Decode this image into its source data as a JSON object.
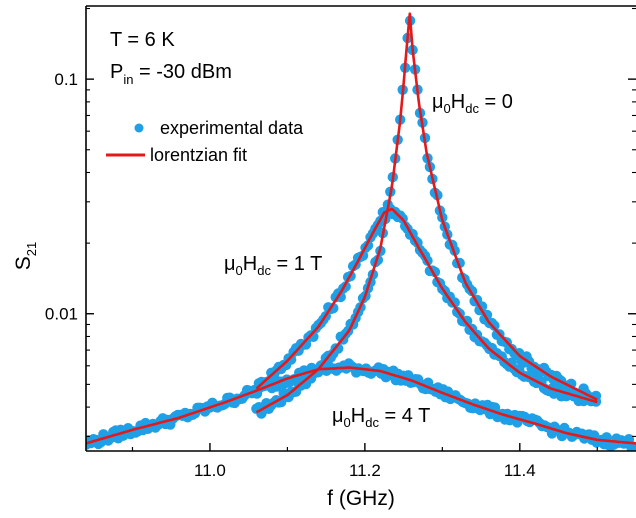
{
  "chart_data": {
    "type": "scatter",
    "xlabel": "f  (GHz)",
    "ylabel": {
      "main": "S",
      "sub": "21"
    },
    "xlim": [
      10.84,
      11.55
    ],
    "ylim": [
      0.0026,
      0.205
    ],
    "yscale": "log",
    "x_ticks": [
      {
        "value": 11.0,
        "label": "11.0"
      },
      {
        "value": 11.2,
        "label": "11.2"
      },
      {
        "value": 11.4,
        "label": "11.4"
      }
    ],
    "y_ticks": [
      {
        "value": 0.01,
        "label": "0.01"
      },
      {
        "value": 0.1,
        "label": "0.1"
      }
    ],
    "grid": false,
    "legend_position": "upper-left",
    "legend": [
      {
        "label": "experimental data",
        "marker": "circle",
        "color": "#1f9fe6"
      },
      {
        "label": "lorentzian fit",
        "marker": "line",
        "color": "#e3191b"
      }
    ],
    "conditions": {
      "temperature": "T = 6 K",
      "power": {
        "pre": "P",
        "sub": "in",
        "post": " = -30 dBm"
      }
    },
    "series": [
      {
        "field_label": {
          "mu": "μ",
          "zero": "0",
          "h": "H",
          "dc": "dc",
          "value": " = 0"
        },
        "range": [
          11.06,
          11.5
        ],
        "x": [
          11.06,
          11.1,
          11.14,
          11.18,
          11.2,
          11.22,
          11.235,
          11.245,
          11.25,
          11.255,
          11.258,
          11.262,
          11.27,
          11.28,
          11.3,
          11.33,
          11.36,
          11.4,
          11.44,
          11.5
        ],
        "y": [
          0.0038,
          0.0045,
          0.0058,
          0.0085,
          0.0118,
          0.019,
          0.035,
          0.064,
          0.095,
          0.15,
          0.19,
          0.13,
          0.078,
          0.048,
          0.025,
          0.0135,
          0.0092,
          0.0066,
          0.0054,
          0.0043
        ]
      },
      {
        "field_label": {
          "mu": "μ",
          "zero": "0",
          "h": "H",
          "dc": "dc",
          "value": " = 1 T"
        },
        "range": [
          11.06,
          11.5
        ],
        "x": [
          11.06,
          11.1,
          11.14,
          11.17,
          11.19,
          11.21,
          11.225,
          11.235,
          11.25,
          11.27,
          11.3,
          11.33,
          11.36,
          11.4,
          11.44,
          11.5
        ],
        "y": [
          0.0048,
          0.0063,
          0.0088,
          0.0125,
          0.0165,
          0.022,
          0.027,
          0.028,
          0.025,
          0.019,
          0.0128,
          0.0092,
          0.0071,
          0.0056,
          0.0048,
          0.0042
        ]
      },
      {
        "field_label": {
          "mu": "μ",
          "zero": "0",
          "h": "H",
          "dc": "dc",
          "value": " = 4 T"
        },
        "range": [
          10.84,
          11.55
        ],
        "x": [
          10.84,
          10.9,
          10.96,
          11.02,
          11.06,
          11.1,
          11.14,
          11.18,
          11.22,
          11.26,
          11.3,
          11.34,
          11.38,
          11.42,
          11.46,
          11.5,
          11.55
        ],
        "y": [
          0.0028,
          0.0032,
          0.0036,
          0.0042,
          0.0047,
          0.0053,
          0.0058,
          0.0059,
          0.0057,
          0.0052,
          0.0046,
          0.0041,
          0.0037,
          0.0034,
          0.0031,
          0.0029,
          0.0028
        ]
      }
    ]
  }
}
